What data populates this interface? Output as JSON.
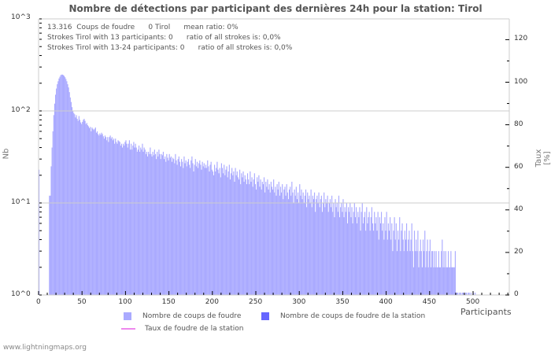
{
  "title": "Nombre de détections par participant des dernières 24h pour la station: Tirol",
  "info_lines": [
    "13.316  Coups de foudre      0 Tirol      mean ratio: 0%",
    "Strokes Tirol with 13 participants: 0      ratio of all strokes is: 0,0%",
    "Strokes Tirol with 13-24 participants: 0      ratio of all strokes is: 0,0%"
  ],
  "axes": {
    "y_left_label": "Nb",
    "y_right_label": "Taux [%]",
    "x_label": "Participants",
    "y_left_ticks": [
      "10^3",
      "10^2",
      "10^1",
      "10^0"
    ],
    "y_right_ticks": [
      "120",
      "100",
      "80",
      "60",
      "40",
      "20",
      "0"
    ],
    "x_ticks": [
      "0",
      "50",
      "100",
      "150",
      "200",
      "250",
      "300",
      "350",
      "400",
      "450",
      "500"
    ]
  },
  "legend": [
    {
      "label": "Nombre de coups de foudre",
      "color": "#aaaaff",
      "type": "box"
    },
    {
      "label": "Nombre de coups de foudre de la station",
      "color": "#6666ff",
      "type": "box"
    },
    {
      "label": "Taux de foudre de la station",
      "color": "#ee88ee",
      "type": "line"
    }
  ],
  "footer": "www.lightningmaps.org",
  "colors": {
    "bar": "#aaaaff",
    "station_bar": "#6666ff",
    "ratio_line": "#ee88ee",
    "grid": "#cccccc",
    "axis": "#cccccc"
  },
  "chart_data": {
    "type": "bar",
    "title": "Nombre de détections par participant des dernières 24h pour la station: Tirol",
    "xlabel": "Participants",
    "ylabel": "Nb",
    "ylabel_right": "Taux [%]",
    "y_scale": "log",
    "ylim": [
      1,
      1000
    ],
    "ylim_right": [
      0,
      130
    ],
    "xlim": [
      0,
      540
    ],
    "grid": true,
    "legend_position": "bottom",
    "series": [
      {
        "name": "Nombre de coups de foudre",
        "x_start": 1,
        "values": [
          23,
          0,
          0,
          0,
          0,
          0,
          0,
          0,
          0,
          0,
          0,
          0,
          12,
          12,
          25,
          40,
          60,
          90,
          120,
          150,
          175,
          195,
          210,
          225,
          235,
          245,
          248,
          248,
          245,
          240,
          232,
          222,
          210,
          195,
          180,
          160,
          140,
          125,
          110,
          100,
          95,
          92,
          85,
          90,
          82,
          78,
          88,
          80,
          75,
          72,
          76,
          80,
          82,
          78,
          72,
          74,
          70,
          68,
          65,
          67,
          60,
          66,
          64,
          62,
          64,
          66,
          58,
          60,
          56,
          54,
          57,
          55,
          58,
          56,
          53,
          50,
          54,
          52,
          48,
          52,
          46,
          52,
          54,
          50,
          52,
          48,
          50,
          44,
          50,
          46,
          44,
          48,
          47,
          46,
          42,
          44,
          40,
          44,
          42,
          46,
          48,
          44,
          40,
          44,
          48,
          38,
          44,
          38,
          42,
          46,
          40,
          44,
          40,
          36,
          38,
          42,
          36,
          40,
          38,
          44,
          36,
          40,
          38,
          34,
          36,
          32,
          36,
          34,
          40,
          34,
          32,
          36,
          33,
          38,
          34,
          30,
          36,
          32,
          38,
          34,
          30,
          34,
          33,
          36,
          30,
          32,
          28,
          34,
          31,
          29,
          34,
          31,
          32,
          28,
          31,
          30,
          27,
          34,
          29,
          26,
          30,
          32,
          28,
          25,
          30,
          28,
          24,
          32,
          27,
          29,
          25,
          28,
          30,
          26,
          24,
          29,
          32,
          27,
          22,
          26,
          30,
          25,
          28,
          24,
          27,
          29,
          26,
          23,
          28,
          25,
          27,
          24,
          26,
          24,
          29,
          25,
          22,
          26,
          28,
          23,
          22,
          20,
          26,
          22,
          24,
          28,
          23,
          21,
          24,
          19,
          27,
          24,
          21,
          26,
          20,
          23,
          25,
          19,
          22,
          26,
          18,
          21,
          24,
          20,
          22,
          17,
          24,
          20,
          22,
          19,
          18,
          23,
          16,
          21,
          19,
          22,
          17,
          20,
          18,
          16,
          21,
          18,
          16,
          22,
          17,
          19,
          15,
          18,
          21,
          16,
          14,
          19,
          17,
          20,
          15,
          18,
          14,
          17,
          16,
          19,
          13,
          17,
          15,
          18,
          14,
          16,
          13,
          17,
          15,
          14,
          18,
          13,
          15,
          12,
          16,
          14,
          17,
          12,
          15,
          13,
          16,
          11,
          14,
          15,
          12,
          16,
          13,
          11,
          14,
          15,
          12,
          17,
          13,
          10,
          14,
          12,
          15,
          11,
          13,
          10,
          16,
          12,
          14,
          11,
          13,
          10,
          12,
          14,
          9,
          13,
          11,
          12,
          10,
          14,
          9,
          12,
          11,
          13,
          8,
          11,
          12,
          10,
          13,
          9,
          11,
          12,
          8,
          10,
          13,
          9,
          11,
          10,
          12,
          8,
          10,
          11,
          9,
          12,
          8,
          10,
          7,
          11,
          9,
          10,
          8,
          12,
          7,
          9,
          10,
          8,
          11,
          7,
          9,
          8,
          10,
          6,
          9,
          8,
          10,
          7,
          9,
          6,
          8,
          10,
          7,
          9,
          6,
          8,
          7,
          9,
          5,
          8,
          10,
          6,
          7,
          8,
          5,
          9,
          6,
          7,
          8,
          5,
          7,
          9,
          6,
          5,
          8,
          6,
          7,
          5,
          8,
          4,
          7,
          6,
          8,
          5,
          6,
          4,
          7,
          5,
          8,
          4,
          6,
          5,
          7,
          4,
          6,
          3,
          5,
          7,
          4,
          6,
          3,
          5,
          4,
          7,
          3,
          5,
          6,
          4,
          3,
          5,
          4,
          6,
          3,
          4,
          5,
          3,
          4,
          6,
          3,
          2,
          5,
          3,
          4,
          3,
          5,
          2,
          3,
          4,
          3,
          2,
          4,
          3,
          5,
          2,
          3,
          4,
          2,
          3,
          4,
          2,
          3,
          3,
          2,
          3,
          2,
          3,
          2,
          2,
          3,
          2,
          2,
          3,
          4,
          2,
          3,
          2,
          3,
          2,
          2,
          3,
          2,
          2,
          3,
          2,
          2,
          2,
          2,
          3,
          1,
          1,
          1,
          0,
          1,
          1,
          0,
          1,
          1,
          1,
          0,
          1,
          1,
          0,
          1,
          1,
          0,
          1,
          0,
          0,
          1,
          0,
          1,
          0,
          0,
          0,
          0,
          0,
          0,
          0,
          0,
          0,
          0,
          0,
          0
        ]
      },
      {
        "name": "Nombre de coups de foudre de la station",
        "values": []
      },
      {
        "name": "Taux de foudre de la station",
        "values": []
      }
    ]
  }
}
